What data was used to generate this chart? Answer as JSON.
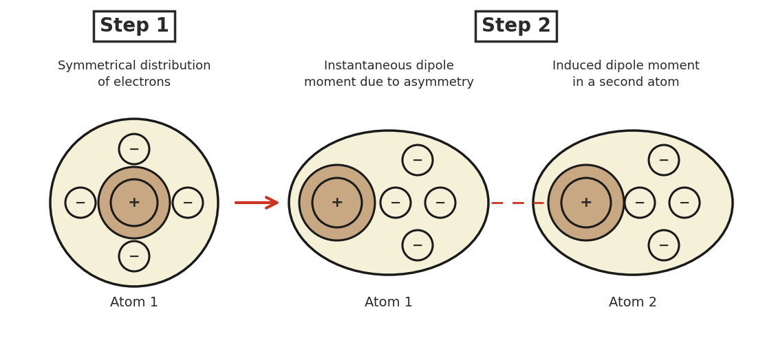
{
  "background_color": "#ffffff",
  "outer_fill": "#f5f0d8",
  "outer_edge": "#1a1a1a",
  "nucleus_fill": "#c8a882",
  "nucleus_edge": "#1a1a1a",
  "electron_fill": "#f5f0d8",
  "electron_edge": "#1a1a1a",
  "text_color": "#2a2a2a",
  "arrow_solid_color": "#cc3322",
  "arrow_dashed_color": "#cc3322",
  "step1_label": "Step 1",
  "step2_label": "Step 2",
  "step1_desc": "Symmetrical distribution\nof electrons",
  "step2_desc1": "Instantaneous dipole\nmoment due to asymmetry",
  "step2_desc2": "Induced dipole moment\nin a second atom",
  "atom1_step1_label": "Atom 1",
  "atom1_step2_label": "Atom 1",
  "atom2_step2_label": "Atom 2",
  "minus_sign": "−"
}
